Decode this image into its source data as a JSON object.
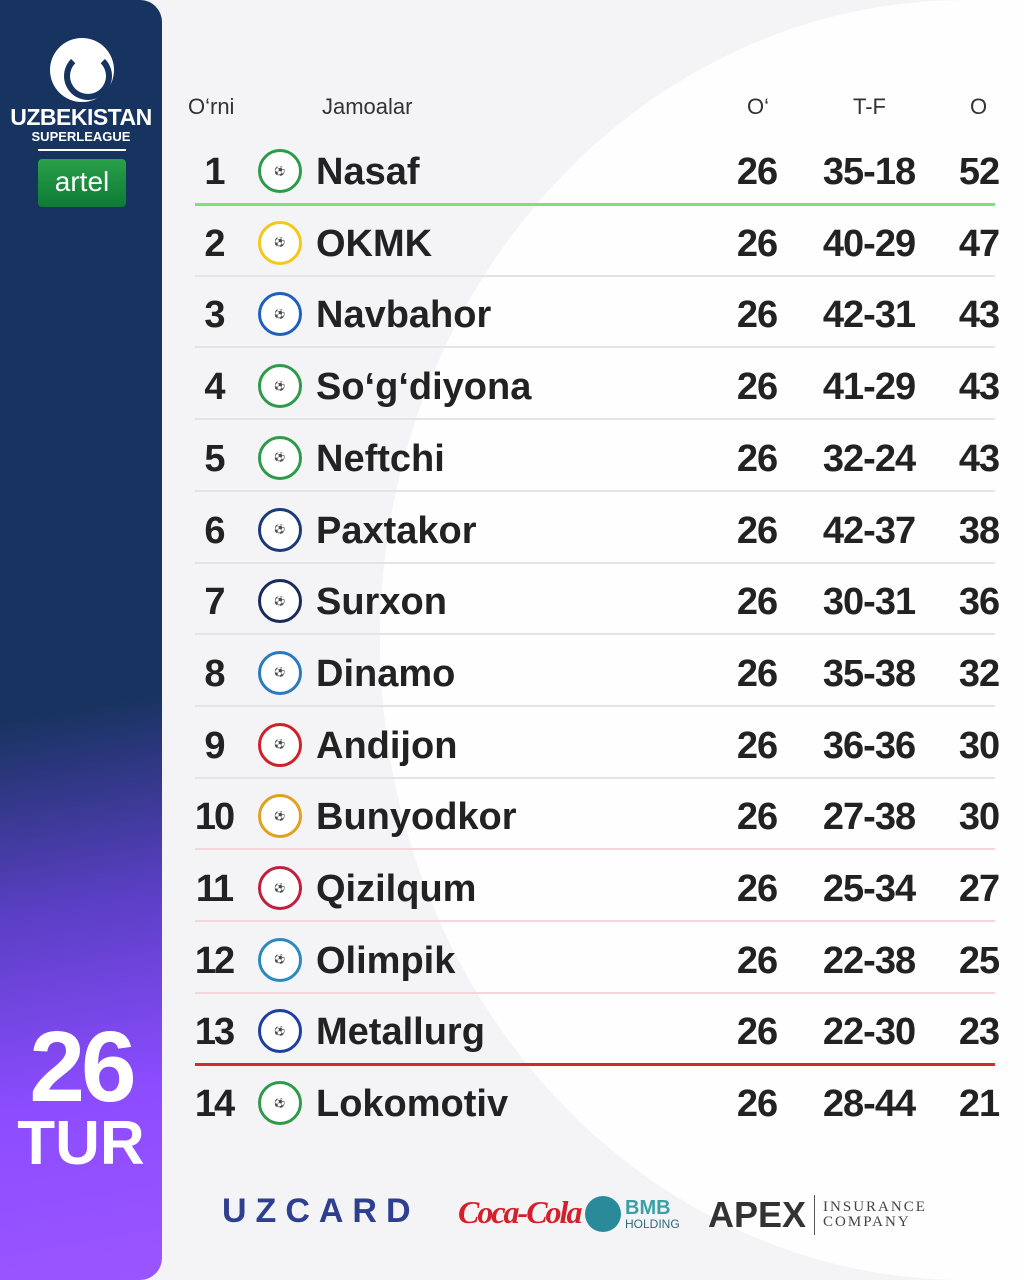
{
  "league": {
    "title": "UZBEKISTAN",
    "subtitle": "SUPERLEAGUE",
    "sponsor": "artel"
  },
  "round": {
    "number": "26",
    "label": "TUR"
  },
  "headers": {
    "rank": "O‘rni",
    "team": "Jamoalar",
    "played": "O‘",
    "goals": "T-F",
    "points": "O"
  },
  "rows": [
    {
      "rank": "1",
      "team": "Nasaf",
      "played": "26",
      "goals": "35-18",
      "points": "52",
      "color": "#2e9b4a"
    },
    {
      "rank": "2",
      "team": "OKMK",
      "played": "26",
      "goals": "40-29",
      "points": "47",
      "color": "#f2c81b"
    },
    {
      "rank": "3",
      "team": "Navbahor",
      "played": "26",
      "goals": "42-31",
      "points": "43",
      "color": "#1f5fc0"
    },
    {
      "rank": "4",
      "team": "So‘g‘diyona",
      "played": "26",
      "goals": "41-29",
      "points": "43",
      "color": "#2e9b4a"
    },
    {
      "rank": "5",
      "team": "Neftchi",
      "played": "26",
      "goals": "32-24",
      "points": "43",
      "color": "#2e9b4a"
    },
    {
      "rank": "6",
      "team": "Paxtakor",
      "played": "26",
      "goals": "42-37",
      "points": "38",
      "color": "#1a3a7a"
    },
    {
      "rank": "7",
      "team": "Surxon",
      "played": "26",
      "goals": "30-31",
      "points": "36",
      "color": "#1a2a5a"
    },
    {
      "rank": "8",
      "team": "Dinamo",
      "played": "26",
      "goals": "35-38",
      "points": "32",
      "color": "#2a7ac0"
    },
    {
      "rank": "9",
      "team": "Andijon",
      "played": "26",
      "goals": "36-36",
      "points": "30",
      "color": "#d0202a"
    },
    {
      "rank": "10",
      "team": "Bunyodkor",
      "played": "26",
      "goals": "27-38",
      "points": "30",
      "color": "#e0a020"
    },
    {
      "rank": "11",
      "team": "Qizilqum",
      "played": "26",
      "goals": "25-34",
      "points": "27",
      "color": "#c02040"
    },
    {
      "rank": "12",
      "team": "Olimpik",
      "played": "26",
      "goals": "22-38",
      "points": "25",
      "color": "#2a8ac0"
    },
    {
      "rank": "13",
      "team": "Metallurg",
      "played": "26",
      "goals": "22-30",
      "points": "23",
      "color": "#1f3fa0"
    },
    {
      "rank": "14",
      "team": "Lokomotiv",
      "played": "26",
      "goals": "28-44",
      "points": "21",
      "color": "#2e9b4a"
    }
  ],
  "separators": [
    "green",
    "gray",
    "gray",
    "gray",
    "gray",
    "gray",
    "gray",
    "gray",
    "gray",
    "pink",
    "pink",
    "pink",
    "red"
  ],
  "sponsors": {
    "uzcard": "UZCARD",
    "cocacola": "Coca-Cola",
    "bmb1": "BMB",
    "bmb2": "HOLDING",
    "apex": "APEX",
    "apex_sub1": "INSURANCE",
    "apex_sub2": "COMPANY"
  },
  "colors": {
    "sidebar_top": "#17335f",
    "sidebar_bottom": "#9b55ff",
    "promotion": "#7ee07a",
    "relegation": "#d42a2a"
  }
}
